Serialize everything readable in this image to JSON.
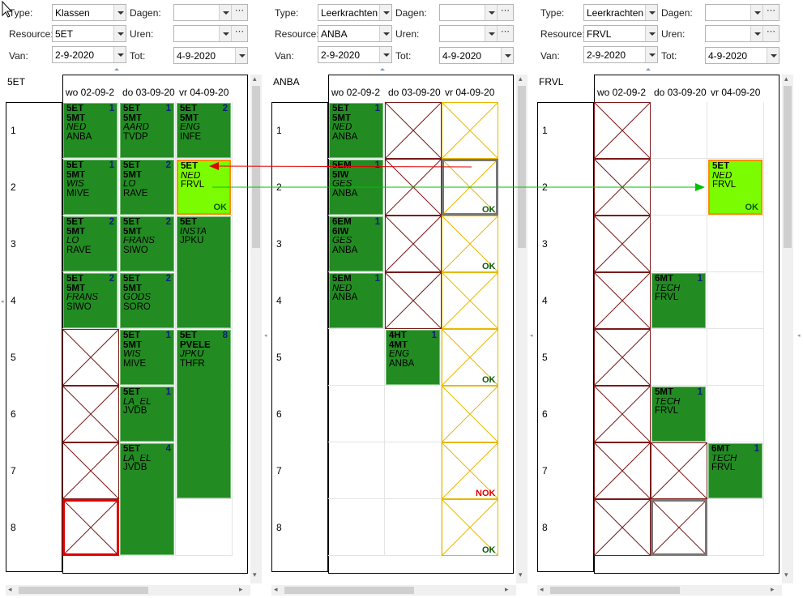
{
  "panels": [
    {
      "type_label": "Type:",
      "type_value": "Klassen",
      "resource_label": "Resource:",
      "resource_value": "5ET",
      "van_label": "Van:",
      "van_value": "2-9-2020",
      "dagen_label": "Dagen:",
      "uren_label": "Uren:",
      "tot_label": "Tot:",
      "tot_value": "4-9-2020",
      "title": "5ET",
      "days": [
        "wo 02-09-2",
        "do 03-09-20",
        "vr 04-09-20"
      ],
      "rows": [
        "1",
        "2",
        "3",
        "4",
        "5",
        "6",
        "7",
        "8"
      ]
    },
    {
      "type_label": "Type:",
      "type_value": "Leerkrachten",
      "resource_label": "Resource:",
      "resource_value": "ANBA",
      "van_label": "Van:",
      "van_value": "2-9-2020",
      "dagen_label": "Dagen:",
      "uren_label": "Uren:",
      "tot_label": "Tot:",
      "tot_value": "4-9-2020",
      "title": "ANBA",
      "days": [
        "wo 02-09-2",
        "do 03-09-20",
        "vr 04-09-20"
      ],
      "rows": [
        "1",
        "2",
        "3",
        "4",
        "5",
        "6",
        "7",
        "8"
      ]
    },
    {
      "type_label": "Type:",
      "type_value": "Leerkrachten",
      "resource_label": "Resource:",
      "resource_value": "FRVL",
      "van_label": "Van:",
      "van_value": "2-9-2020",
      "dagen_label": "Dagen:",
      "uren_label": "Uren:",
      "tot_label": "Tot:",
      "tot_value": "4-9-2020",
      "title": "FRVL",
      "days": [
        "wo 02-09-2",
        "do 03-09-20",
        "vr 04-09-20"
      ],
      "rows": [
        "1",
        "2",
        "3",
        "4",
        "5",
        "6",
        "7",
        "8"
      ]
    }
  ],
  "lessons": {
    "p1": [
      {
        "lines": [
          "5ET",
          "5MT",
          "NED",
          "ANBA"
        ],
        "num": "1"
      },
      {
        "lines": [
          "5ET",
          "5MT",
          "AARD",
          "TVDP"
        ],
        "num": "1"
      },
      {
        "lines": [
          "5ET",
          "5MT",
          "ENG",
          "INFE"
        ],
        "num": "2"
      },
      {
        "lines": [
          "5ET",
          "5MT",
          "WIS",
          "MIVE"
        ],
        "num": "1"
      },
      {
        "lines": [
          "5ET",
          "5MT",
          "LO",
          "RAVE"
        ],
        "num": "2"
      },
      {
        "lines": [
          "5ET",
          "NED",
          "FRVL"
        ],
        "num": "",
        "status": "OK"
      },
      {
        "lines": [
          "5ET",
          "5MT",
          "LO",
          "RAVE"
        ],
        "num": "2"
      },
      {
        "lines": [
          "5ET",
          "5MT",
          "FRANS",
          "SIWO"
        ],
        "num": "2"
      },
      {
        "lines": [
          "5ET",
          "INSTA",
          "JPKU"
        ],
        "num": ""
      },
      {
        "lines": [
          "5ET",
          "5MT",
          "FRANS",
          "SIWO"
        ],
        "num": "2"
      },
      {
        "lines": [
          "5ET",
          "5MT",
          "GODS",
          "SORO"
        ],
        "num": "2"
      },
      {
        "lines": [
          "5ET",
          "5MT",
          "WIS",
          "MIVE"
        ],
        "num": "1"
      },
      {
        "lines": [
          "5ET",
          "PVELE",
          "JPKU",
          "THFR"
        ],
        "num": "8"
      },
      {
        "lines": [
          "5ET",
          "LA_EL",
          "JVDB"
        ],
        "num": "1"
      },
      {
        "lines": [
          "5ET",
          "LA_EL",
          "JVDB"
        ],
        "num": "4"
      }
    ],
    "p2": [
      {
        "lines": [
          "5ET",
          "5MT",
          "NED",
          "ANBA"
        ],
        "num": "1"
      },
      {
        "lines": [
          "5EM",
          "5IW",
          "GES",
          "ANBA"
        ],
        "num": "1"
      },
      {
        "lines": [
          "6EM",
          "6IW",
          "GES",
          "ANBA"
        ],
        "num": "1"
      },
      {
        "lines": [
          "5EM",
          "NED",
          "ANBA"
        ],
        "num": "1"
      },
      {
        "lines": [
          "4HT",
          "4MT",
          "ENG",
          "ANBA"
        ],
        "num": "1"
      }
    ],
    "p3": [
      {
        "lines": [
          "5ET",
          "NED",
          "FRVL"
        ],
        "num": "",
        "status": "OK"
      },
      {
        "lines": [
          "6MT",
          "TECH",
          "FRVL"
        ],
        "num": "1"
      },
      {
        "lines": [
          "5MT",
          "TECH",
          "FRVL"
        ],
        "num": "1"
      },
      {
        "lines": [
          "6MT",
          "TECH",
          "FRVL"
        ],
        "num": "1"
      }
    ],
    "anba_status": [
      "OK",
      "OK",
      "OK",
      "NOK",
      "OK"
    ]
  },
  "colors": {
    "lesson": "#228b22",
    "moved": "#7cfc00",
    "moved_border": "#ff8c00",
    "conflict": "#e00000",
    "link": "#00c000",
    "ok": "#0a5a0a",
    "nok": "#e00000"
  },
  "icons": {
    "dropdown": "chevron-down-icon",
    "ellipsis": "ellipsis-icon",
    "move_arrow": "arrow-icon"
  }
}
